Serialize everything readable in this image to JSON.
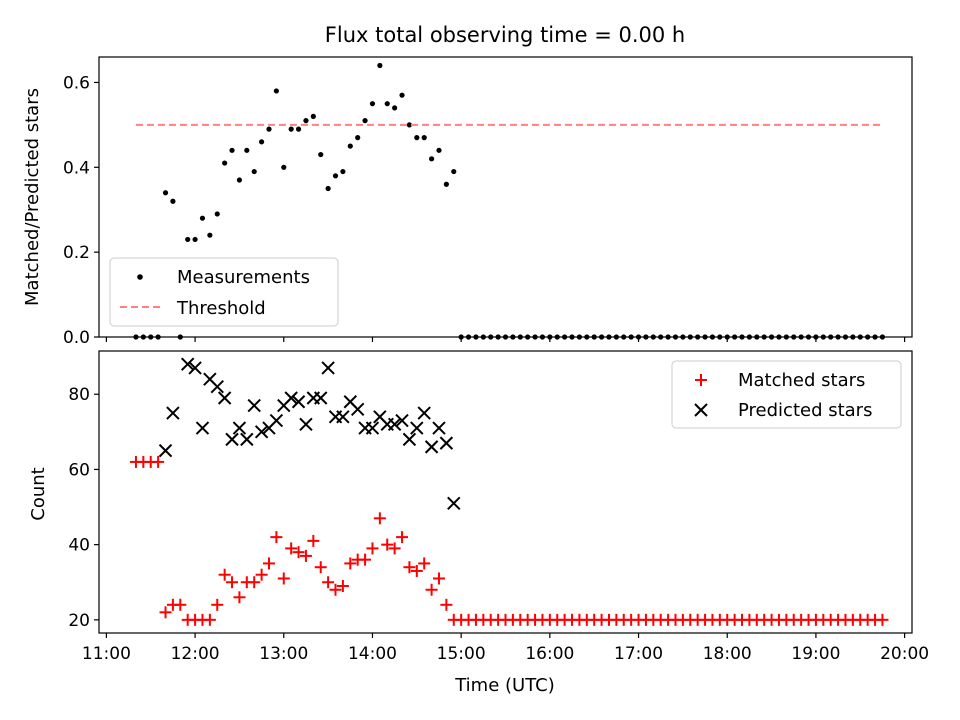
{
  "chart_data": [
    {
      "type": "scatter",
      "title": "Flux total observing time = 0.00 h",
      "xlabel": "",
      "ylabel": "Matched/Predicted stars",
      "xlim": [
        "10:55",
        "20:05"
      ],
      "ylim": [
        0,
        0.66
      ],
      "yticks": [
        "0.0",
        "0.2",
        "0.4",
        "0.6"
      ],
      "legend_position": "lower-left",
      "series": [
        {
          "name": "Measurements",
          "style": "dot",
          "color": "#000000",
          "points": [
            [
              "11:20",
              0.0
            ],
            [
              "11:25",
              0.0
            ],
            [
              "11:30",
              0.0
            ],
            [
              "11:35",
              0.0
            ],
            [
              "11:40",
              0.34
            ],
            [
              "11:45",
              0.32
            ],
            [
              "11:50",
              0.0
            ],
            [
              "11:55",
              0.23
            ],
            [
              "12:00",
              0.23
            ],
            [
              "12:05",
              0.28
            ],
            [
              "12:10",
              0.24
            ],
            [
              "12:15",
              0.29
            ],
            [
              "12:20",
              0.41
            ],
            [
              "12:25",
              0.44
            ],
            [
              "12:30",
              0.37
            ],
            [
              "12:35",
              0.44
            ],
            [
              "12:40",
              0.39
            ],
            [
              "12:45",
              0.46
            ],
            [
              "12:50",
              0.49
            ],
            [
              "12:55",
              0.58
            ],
            [
              "13:00",
              0.4
            ],
            [
              "13:05",
              0.49
            ],
            [
              "13:10",
              0.49
            ],
            [
              "13:15",
              0.51
            ],
            [
              "13:20",
              0.52
            ],
            [
              "13:25",
              0.43
            ],
            [
              "13:30",
              0.35
            ],
            [
              "13:35",
              0.38
            ],
            [
              "13:40",
              0.39
            ],
            [
              "13:45",
              0.45
            ],
            [
              "13:50",
              0.47
            ],
            [
              "13:55",
              0.51
            ],
            [
              "14:00",
              0.55
            ],
            [
              "14:05",
              0.64
            ],
            [
              "14:10",
              0.55
            ],
            [
              "14:15",
              0.54
            ],
            [
              "14:20",
              0.57
            ],
            [
              "14:25",
              0.5
            ],
            [
              "14:30",
              0.47
            ],
            [
              "14:35",
              0.47
            ],
            [
              "14:40",
              0.42
            ],
            [
              "14:45",
              0.44
            ],
            [
              "14:50",
              0.36
            ],
            [
              "14:55",
              0.39
            ]
          ],
          "zero_points": {
            "from": "15:00",
            "to": "19:45",
            "step_minutes": 5,
            "value": 0.0
          }
        },
        {
          "name": "Threshold",
          "style": "dashed-line",
          "color": "#ff8080",
          "from": "11:20",
          "to": "19:45",
          "value": 0.5
        }
      ]
    },
    {
      "type": "scatter",
      "title": "",
      "xlabel": "Time (UTC)",
      "ylabel": "Count",
      "xlim": [
        "10:55",
        "20:05"
      ],
      "ylim": [
        16.5,
        91.5
      ],
      "yticks": [
        "20",
        "40",
        "60",
        "80"
      ],
      "xticks": [
        "11:00",
        "12:00",
        "13:00",
        "14:00",
        "15:00",
        "16:00",
        "17:00",
        "18:00",
        "19:00",
        "20:00"
      ],
      "legend_position": "top-right",
      "series": [
        {
          "name": "Matched stars",
          "style": "plus",
          "color": "#ff0000",
          "points": [
            [
              "11:20",
              62
            ],
            [
              "11:25",
              62
            ],
            [
              "11:30",
              62
            ],
            [
              "11:35",
              62
            ],
            [
              "11:40",
              22
            ],
            [
              "11:45",
              24
            ],
            [
              "11:50",
              24
            ],
            [
              "11:55",
              20
            ],
            [
              "12:00",
              20
            ],
            [
              "12:05",
              20
            ],
            [
              "12:10",
              20
            ],
            [
              "12:15",
              24
            ],
            [
              "12:20",
              32
            ],
            [
              "12:25",
              30
            ],
            [
              "12:30",
              26
            ],
            [
              "12:35",
              30
            ],
            [
              "12:40",
              30
            ],
            [
              "12:45",
              32
            ],
            [
              "12:50",
              35
            ],
            [
              "12:55",
              42
            ],
            [
              "13:00",
              31
            ],
            [
              "13:05",
              39
            ],
            [
              "13:10",
              38
            ],
            [
              "13:15",
              37
            ],
            [
              "13:20",
              41
            ],
            [
              "13:25",
              34
            ],
            [
              "13:30",
              30
            ],
            [
              "13:35",
              28
            ],
            [
              "13:40",
              29
            ],
            [
              "13:45",
              35
            ],
            [
              "13:50",
              36
            ],
            [
              "13:55",
              36
            ],
            [
              "14:00",
              39
            ],
            [
              "14:05",
              47
            ],
            [
              "14:10",
              40
            ],
            [
              "14:15",
              39
            ],
            [
              "14:20",
              42
            ],
            [
              "14:25",
              34
            ],
            [
              "14:30",
              33
            ],
            [
              "14:35",
              35
            ],
            [
              "14:40",
              28
            ],
            [
              "14:45",
              31
            ],
            [
              "14:50",
              24
            ]
          ],
          "constant_points": {
            "from": "14:55",
            "to": "19:45",
            "step_minutes": 5,
            "value": 20
          }
        },
        {
          "name": "Predicted stars",
          "style": "cross",
          "color": "#000000",
          "points": [
            [
              "11:40",
              65
            ],
            [
              "11:45",
              75
            ],
            [
              "11:55",
              88
            ],
            [
              "12:00",
              87
            ],
            [
              "12:05",
              71
            ],
            [
              "12:10",
              84
            ],
            [
              "12:15",
              82
            ],
            [
              "12:20",
              79
            ],
            [
              "12:25",
              68
            ],
            [
              "12:30",
              71
            ],
            [
              "12:35",
              68
            ],
            [
              "12:40",
              77
            ],
            [
              "12:45",
              70
            ],
            [
              "12:50",
              71
            ],
            [
              "12:55",
              73
            ],
            [
              "13:00",
              77
            ],
            [
              "13:05",
              79
            ],
            [
              "13:10",
              78
            ],
            [
              "13:15",
              72
            ],
            [
              "13:20",
              79
            ],
            [
              "13:25",
              79
            ],
            [
              "13:30",
              87
            ],
            [
              "13:35",
              74
            ],
            [
              "13:40",
              74
            ],
            [
              "13:45",
              78
            ],
            [
              "13:50",
              76
            ],
            [
              "13:55",
              71
            ],
            [
              "14:00",
              71
            ],
            [
              "14:05",
              74
            ],
            [
              "14:10",
              72
            ],
            [
              "14:15",
              72
            ],
            [
              "14:20",
              73
            ],
            [
              "14:25",
              68
            ],
            [
              "14:30",
              71
            ],
            [
              "14:35",
              75
            ],
            [
              "14:40",
              66
            ],
            [
              "14:45",
              71
            ],
            [
              "14:50",
              67
            ],
            [
              "14:55",
              51
            ]
          ]
        }
      ]
    }
  ]
}
